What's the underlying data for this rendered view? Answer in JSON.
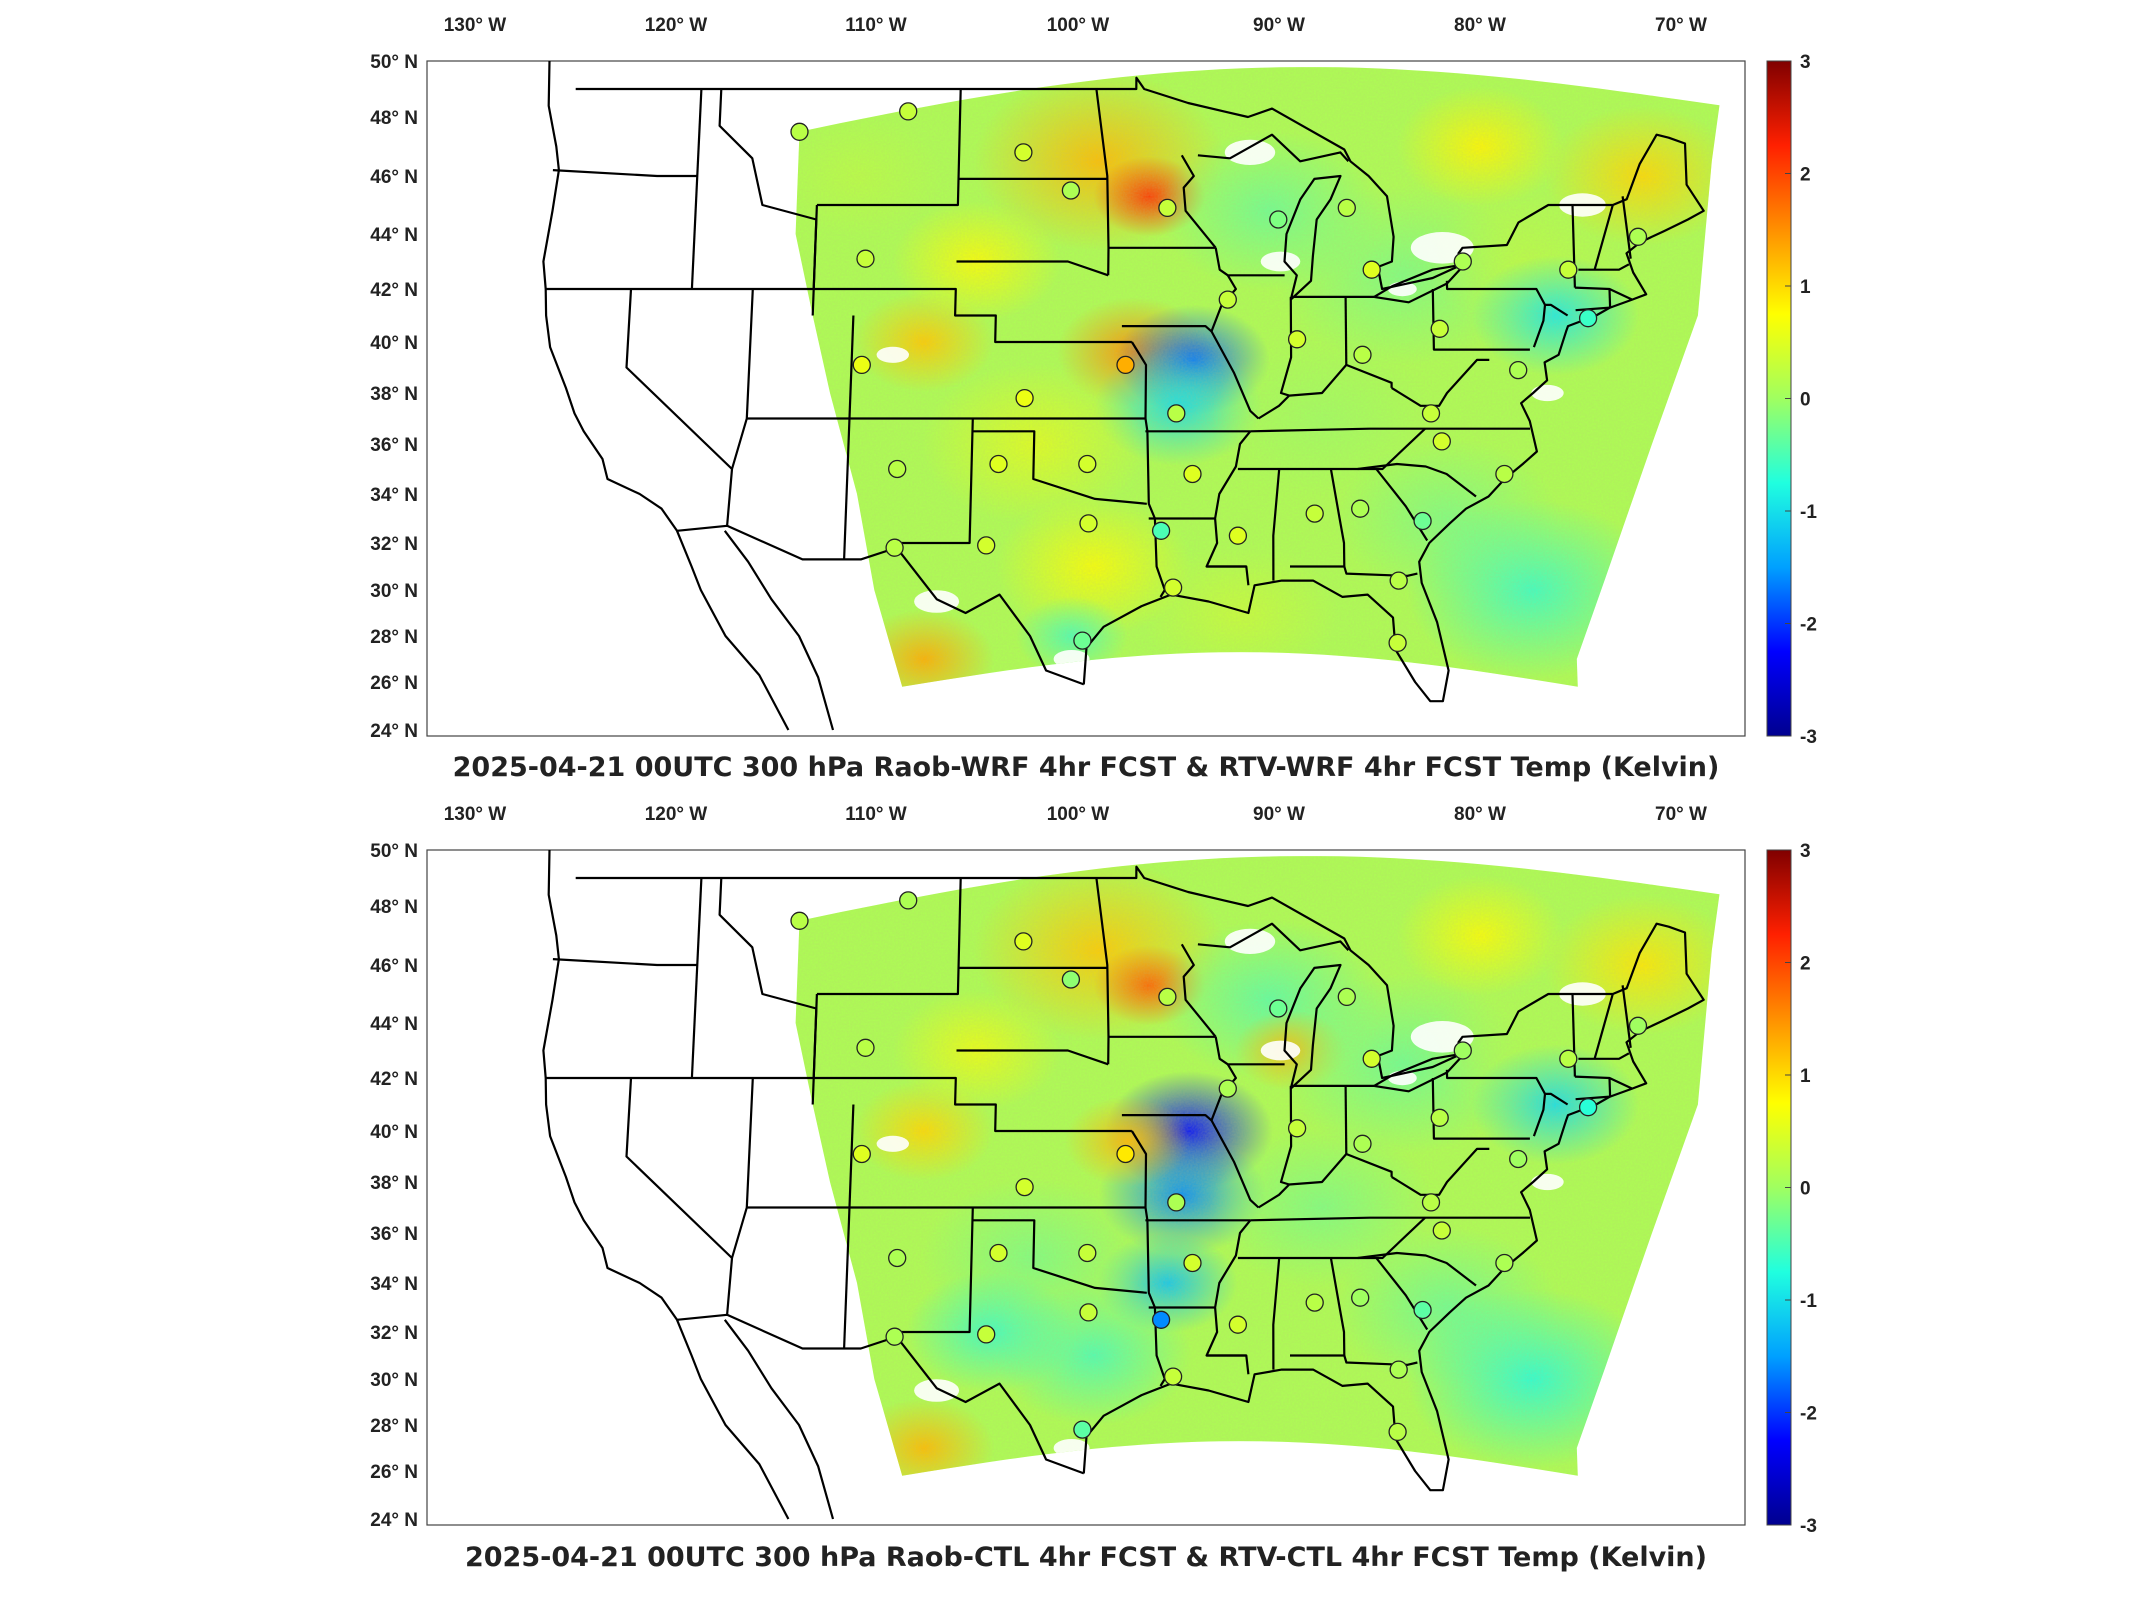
{
  "figure": {
    "colorbar_ticks": [
      "3",
      "2",
      "1",
      "0",
      "-1",
      "-2",
      "-3"
    ],
    "colorbar_range": [
      -3,
      3
    ],
    "colormap": [
      "#00008f",
      "#0000ff",
      "#00a0ff",
      "#20ffdf",
      "#a0ff60",
      "#ffff00",
      "#ff9000",
      "#ff2000",
      "#800000"
    ],
    "lon_ticks": [
      "130° W",
      "120° W",
      "110° W",
      "100° W",
      "90° W",
      "80° W",
      "70° W"
    ],
    "lat_ticks": [
      "50° N",
      "48° N",
      "46° N",
      "44° N",
      "42° N",
      "40° N",
      "38° N",
      "36° N",
      "34° N",
      "32° N",
      "30° N",
      "28° N",
      "26° N",
      "24° N"
    ]
  },
  "panels": [
    {
      "title": "2025-04-21 00UTC 300 hPa Raob-WRF 4hr FCST & RTV-WRF 4hr FCST Temp (Kelvin)",
      "stations": [
        {
          "lon": -112.0,
          "lat": 47.5,
          "value": 0.2
        },
        {
          "lon": -106.6,
          "lat": 48.2,
          "value": 0.3
        },
        {
          "lon": -100.8,
          "lat": 46.8,
          "value": 0.4
        },
        {
          "lon": -98.4,
          "lat": 45.5,
          "value": 0.1
        },
        {
          "lon": -93.6,
          "lat": 44.9,
          "value": 0.3
        },
        {
          "lon": -88.1,
          "lat": 44.5,
          "value": -0.2
        },
        {
          "lon": -84.7,
          "lat": 44.9,
          "value": 0.2
        },
        {
          "lon": -108.5,
          "lat": 43.1,
          "value": 0.3
        },
        {
          "lon": -83.5,
          "lat": 42.7,
          "value": 0.5
        },
        {
          "lon": -79.0,
          "lat": 43.0,
          "value": 0.1
        },
        {
          "lon": -73.8,
          "lat": 42.7,
          "value": 0.3
        },
        {
          "lon": -70.3,
          "lat": 43.9,
          "value": 0.1
        },
        {
          "lon": -90.6,
          "lat": 41.6,
          "value": 0.3
        },
        {
          "lon": -87.2,
          "lat": 40.1,
          "value": 0.4
        },
        {
          "lon": -84.0,
          "lat": 39.5,
          "value": 0.2
        },
        {
          "lon": -80.2,
          "lat": 40.5,
          "value": 0.3
        },
        {
          "lon": -72.9,
          "lat": 40.9,
          "value": -0.6
        },
        {
          "lon": -76.4,
          "lat": 38.9,
          "value": 0.1
        },
        {
          "lon": -108.5,
          "lat": 39.1,
          "value": 0.6
        },
        {
          "lon": -95.6,
          "lat": 39.1,
          "value": 1.3
        },
        {
          "lon": -100.5,
          "lat": 37.8,
          "value": 0.6
        },
        {
          "lon": -93.1,
          "lat": 37.2,
          "value": 0.2
        },
        {
          "lon": -80.7,
          "lat": 37.2,
          "value": 0.3
        },
        {
          "lon": -106.6,
          "lat": 35.0,
          "value": 0.2
        },
        {
          "lon": -101.7,
          "lat": 35.2,
          "value": 0.5
        },
        {
          "lon": -97.4,
          "lat": 35.2,
          "value": 0.4
        },
        {
          "lon": -92.3,
          "lat": 34.8,
          "value": 0.5
        },
        {
          "lon": -80.2,
          "lat": 36.1,
          "value": 0.4
        },
        {
          "lon": -77.2,
          "lat": 34.8,
          "value": 0.2
        },
        {
          "lon": -97.3,
          "lat": 32.8,
          "value": 0.4
        },
        {
          "lon": -93.8,
          "lat": 32.5,
          "value": -0.5
        },
        {
          "lon": -90.1,
          "lat": 32.3,
          "value": 0.5
        },
        {
          "lon": -86.4,
          "lat": 33.2,
          "value": 0.3
        },
        {
          "lon": -84.2,
          "lat": 33.4,
          "value": 0.1
        },
        {
          "lon": -106.6,
          "lat": 31.8,
          "value": 0.2
        },
        {
          "lon": -102.2,
          "lat": 31.9,
          "value": 0.4
        },
        {
          "lon": -81.2,
          "lat": 32.9,
          "value": -0.3
        },
        {
          "lon": -93.2,
          "lat": 30.1,
          "value": 0.4
        },
        {
          "lon": -82.4,
          "lat": 30.4,
          "value": 0.2
        },
        {
          "lon": -97.5,
          "lat": 27.8,
          "value": -0.3
        },
        {
          "lon": -82.5,
          "lat": 27.7,
          "value": 0.3
        }
      ]
    },
    {
      "title": "2025-04-21 00UTC 300 hPa Raob-CTL 4hr FCST & RTV-CTL 4hr FCST Temp (Kelvin)",
      "stations": [
        {
          "lon": -112.0,
          "lat": 47.5,
          "value": 0.2
        },
        {
          "lon": -106.6,
          "lat": 48.2,
          "value": 0.1
        },
        {
          "lon": -100.8,
          "lat": 46.8,
          "value": 0.5
        },
        {
          "lon": -98.4,
          "lat": 45.5,
          "value": -0.1
        },
        {
          "lon": -93.6,
          "lat": 44.9,
          "value": 0.2
        },
        {
          "lon": -88.1,
          "lat": 44.5,
          "value": -0.3
        },
        {
          "lon": -84.7,
          "lat": 44.9,
          "value": 0.1
        },
        {
          "lon": -108.5,
          "lat": 43.1,
          "value": 0.2
        },
        {
          "lon": -83.5,
          "lat": 42.7,
          "value": 0.4
        },
        {
          "lon": -79.0,
          "lat": 43.0,
          "value": 0.0
        },
        {
          "lon": -73.8,
          "lat": 42.7,
          "value": 0.2
        },
        {
          "lon": -70.3,
          "lat": 43.9,
          "value": 0.0
        },
        {
          "lon": -90.6,
          "lat": 41.6,
          "value": 0.1
        },
        {
          "lon": -87.2,
          "lat": 40.1,
          "value": 0.3
        },
        {
          "lon": -84.0,
          "lat": 39.5,
          "value": 0.1
        },
        {
          "lon": -80.2,
          "lat": 40.5,
          "value": 0.2
        },
        {
          "lon": -72.9,
          "lat": 40.9,
          "value": -0.7
        },
        {
          "lon": -76.4,
          "lat": 38.9,
          "value": 0.0
        },
        {
          "lon": -108.5,
          "lat": 39.1,
          "value": 0.5
        },
        {
          "lon": -95.6,
          "lat": 39.1,
          "value": 0.9
        },
        {
          "lon": -100.5,
          "lat": 37.8,
          "value": 0.4
        },
        {
          "lon": -93.1,
          "lat": 37.2,
          "value": 0.1
        },
        {
          "lon": -80.7,
          "lat": 37.2,
          "value": 0.2
        },
        {
          "lon": -106.6,
          "lat": 35.0,
          "value": 0.1
        },
        {
          "lon": -101.7,
          "lat": 35.2,
          "value": 0.4
        },
        {
          "lon": -97.4,
          "lat": 35.2,
          "value": 0.3
        },
        {
          "lon": -92.3,
          "lat": 34.8,
          "value": 0.4
        },
        {
          "lon": -80.2,
          "lat": 36.1,
          "value": 0.3
        },
        {
          "lon": -77.2,
          "lat": 34.8,
          "value": 0.1
        },
        {
          "lon": -97.3,
          "lat": 32.8,
          "value": 0.3
        },
        {
          "lon": -93.8,
          "lat": 32.5,
          "value": -1.6
        },
        {
          "lon": -90.1,
          "lat": 32.3,
          "value": 0.4
        },
        {
          "lon": -86.4,
          "lat": 33.2,
          "value": 0.2
        },
        {
          "lon": -84.2,
          "lat": 33.4,
          "value": 0.0
        },
        {
          "lon": -106.6,
          "lat": 31.8,
          "value": 0.1
        },
        {
          "lon": -102.2,
          "lat": 31.9,
          "value": 0.3
        },
        {
          "lon": -81.2,
          "lat": 32.9,
          "value": -0.4
        },
        {
          "lon": -93.2,
          "lat": 30.1,
          "value": 0.3
        },
        {
          "lon": -82.4,
          "lat": 30.4,
          "value": 0.1
        },
        {
          "lon": -97.5,
          "lat": 27.8,
          "value": -0.4
        },
        {
          "lon": -82.5,
          "lat": 27.7,
          "value": 0.2
        }
      ]
    }
  ]
}
